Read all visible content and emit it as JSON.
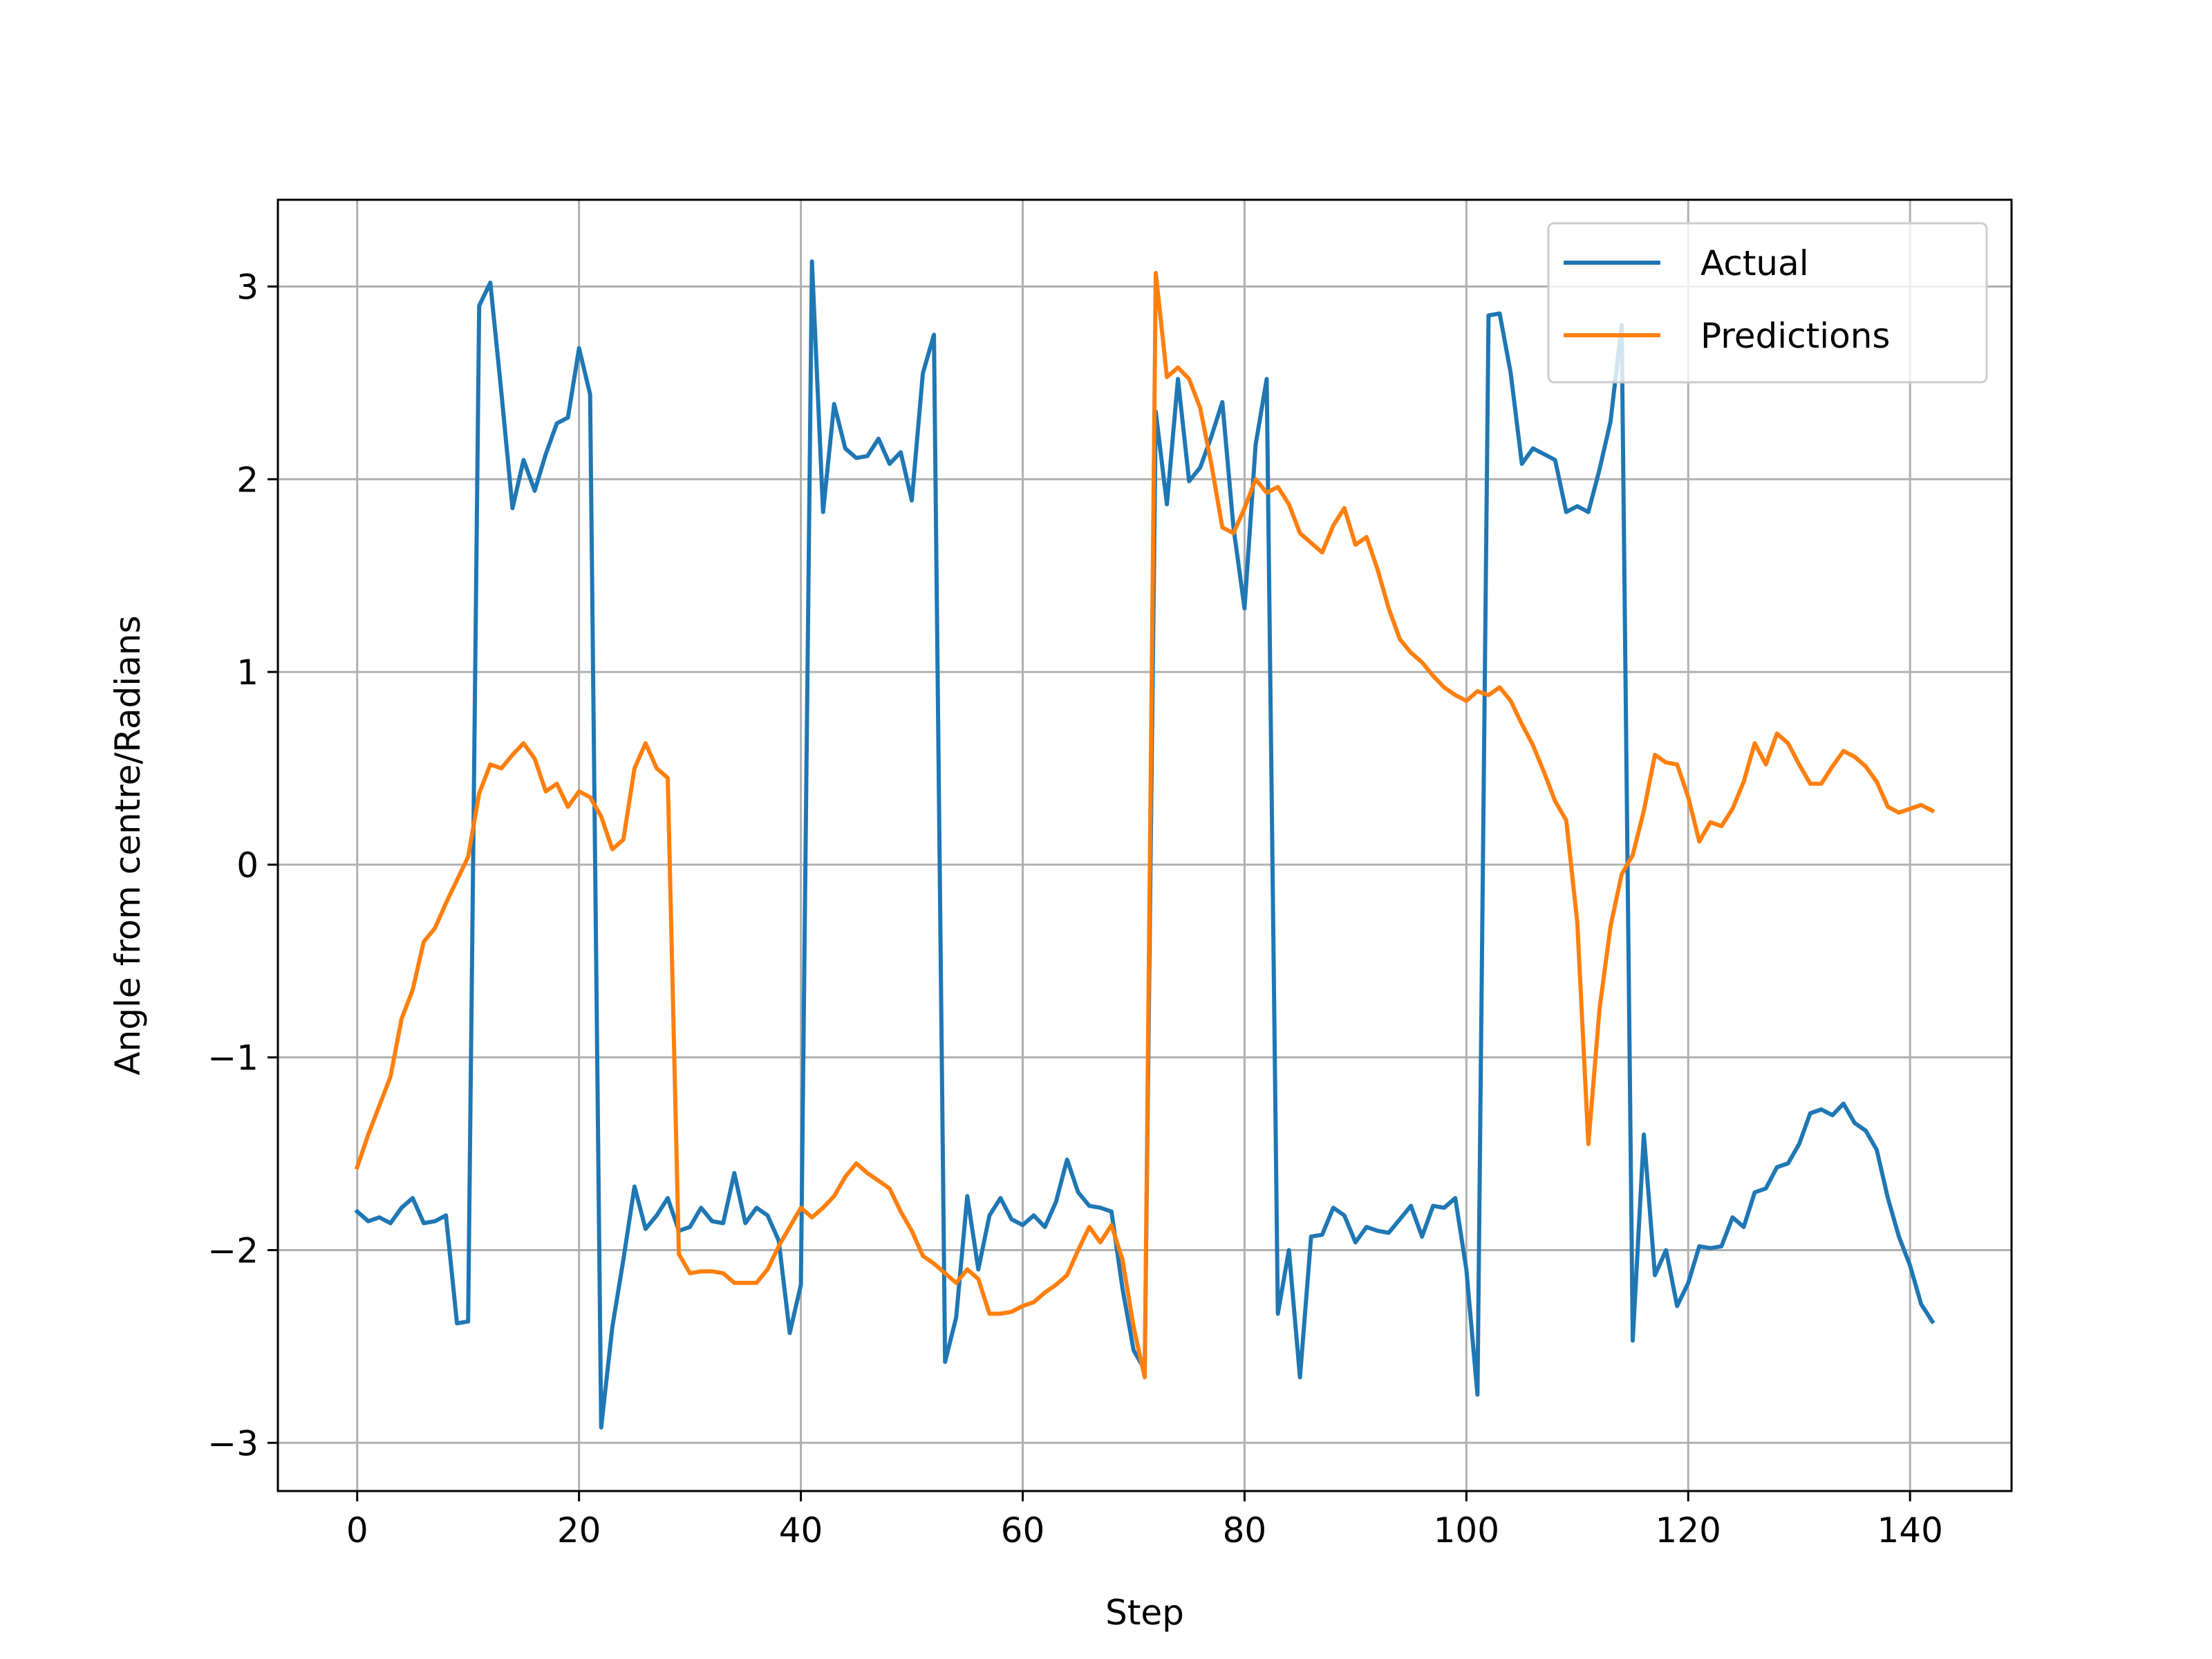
{
  "chart_data": {
    "type": "line",
    "title": "",
    "xlabel": "Step",
    "ylabel": "Angle from centre/Radians",
    "xlim": [
      -7.15,
      149.15
    ],
    "ylim": [
      -3.25,
      3.45
    ],
    "xticks": [
      0,
      20,
      40,
      60,
      80,
      100,
      120,
      140
    ],
    "yticks": [
      -3,
      -2,
      -1,
      0,
      1,
      2,
      3
    ],
    "ytick_labels": [
      "−3",
      "−2",
      "−1",
      "0",
      "1",
      "2",
      "3"
    ],
    "grid": true,
    "legend_position": "top-right",
    "series": [
      {
        "name": "Actual",
        "color": "#1f77b4",
        "values": [
          -1.8,
          -1.85,
          -1.83,
          -1.86,
          -1.78,
          -1.73,
          -1.86,
          -1.85,
          -1.82,
          -2.38,
          -2.37,
          2.9,
          3.02,
          2.45,
          1.85,
          2.1,
          1.94,
          2.13,
          2.29,
          2.32,
          2.68,
          2.44,
          -2.92,
          -2.4,
          -2.05,
          -1.67,
          -1.89,
          -1.82,
          -1.73,
          -1.9,
          -1.88,
          -1.78,
          -1.85,
          -1.86,
          -1.6,
          -1.86,
          -1.78,
          -1.82,
          -1.95,
          -2.43,
          -2.18,
          3.13,
          1.83,
          2.39,
          2.16,
          2.11,
          2.12,
          2.21,
          2.08,
          2.14,
          1.89,
          2.55,
          2.75,
          -2.58,
          -2.35,
          -1.72,
          -2.1,
          -1.82,
          -1.73,
          -1.84,
          -1.87,
          -1.82,
          -1.88,
          -1.75,
          -1.53,
          -1.7,
          -1.77,
          -1.78,
          -1.8,
          -2.2,
          -2.52,
          -2.62,
          2.35,
          1.87,
          2.52,
          1.99,
          2.06,
          2.22,
          2.4,
          1.75,
          1.33,
          2.18,
          2.52,
          -2.33,
          -2.0,
          -2.66,
          -1.93,
          -1.92,
          -1.78,
          -1.82,
          -1.96,
          -1.88,
          -1.9,
          -1.91,
          -1.84,
          -1.77,
          -1.93,
          -1.77,
          -1.78,
          -1.73,
          -2.1,
          -2.75,
          2.85,
          2.86,
          2.55,
          2.08,
          2.16,
          2.13,
          2.1,
          1.83,
          1.86,
          1.83,
          2.05,
          2.3,
          2.8,
          -2.47,
          -1.4,
          -2.13,
          -2.0,
          -2.29,
          -2.17,
          -1.98,
          -1.99,
          -1.98,
          -1.83,
          -1.88,
          -1.7,
          -1.68,
          -1.57,
          -1.55,
          -1.45,
          -1.29,
          -1.27,
          -1.3,
          -1.24,
          -1.34,
          -1.38,
          -1.48,
          -1.73,
          -1.93,
          -2.08,
          -2.28,
          -2.37
        ]
      },
      {
        "name": "Predictions",
        "color": "#ff7f0e",
        "values": [
          -1.57,
          -1.4,
          -1.25,
          -1.1,
          -0.8,
          -0.65,
          -0.4,
          -0.33,
          -0.2,
          -0.08,
          0.04,
          0.37,
          0.52,
          0.5,
          0.57,
          0.63,
          0.55,
          0.38,
          0.42,
          0.3,
          0.38,
          0.35,
          0.25,
          0.08,
          0.13,
          0.5,
          0.63,
          0.5,
          0.45,
          -2.02,
          -2.12,
          -2.11,
          -2.11,
          -2.12,
          -2.17,
          -2.17,
          -2.17,
          -2.1,
          -1.98,
          -1.88,
          -1.78,
          -1.83,
          -1.78,
          -1.72,
          -1.62,
          -1.55,
          -1.6,
          -1.64,
          -1.68,
          -1.8,
          -1.9,
          -2.03,
          -2.07,
          -2.12,
          -2.17,
          -2.1,
          -2.15,
          -2.33,
          -2.33,
          -2.32,
          -2.29,
          -2.27,
          -2.22,
          -2.18,
          -2.13,
          -2.0,
          -1.88,
          -1.96,
          -1.87,
          -2.05,
          -2.4,
          -2.66,
          3.07,
          2.53,
          2.58,
          2.52,
          2.37,
          2.08,
          1.75,
          1.72,
          1.85,
          2.0,
          1.93,
          1.96,
          1.87,
          1.72,
          1.67,
          1.62,
          1.76,
          1.85,
          1.66,
          1.7,
          1.53,
          1.33,
          1.17,
          1.1,
          1.05,
          0.98,
          0.92,
          0.88,
          0.85,
          0.9,
          0.88,
          0.92,
          0.85,
          0.73,
          0.62,
          0.48,
          0.33,
          0.23,
          -0.3,
          -1.45,
          -0.75,
          -0.32,
          -0.05,
          0.05,
          0.28,
          0.57,
          0.53,
          0.52,
          0.35,
          0.12,
          0.22,
          0.2,
          0.29,
          0.43,
          0.63,
          0.52,
          0.68,
          0.63,
          0.52,
          0.42,
          0.42,
          0.51,
          0.59,
          0.56,
          0.51,
          0.43,
          0.3,
          0.27,
          0.29,
          0.31,
          0.28
        ]
      }
    ]
  }
}
